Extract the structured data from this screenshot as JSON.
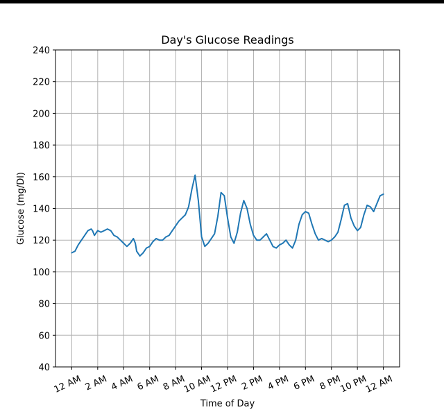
{
  "chart_data": {
    "type": "line",
    "title": "Day's Glucose Readings",
    "xlabel": "Time of Day",
    "ylabel": "Glucose (mg/Dl)",
    "ylim": [
      40,
      240
    ],
    "yticks": [
      40,
      60,
      80,
      100,
      120,
      140,
      160,
      180,
      200,
      220,
      240
    ],
    "xlim": [
      -1.25,
      25.25
    ],
    "xticks": [
      {
        "value": 0,
        "label": "12 AM"
      },
      {
        "value": 2,
        "label": "2 AM"
      },
      {
        "value": 4,
        "label": "4 AM"
      },
      {
        "value": 6,
        "label": "6 AM"
      },
      {
        "value": 8,
        "label": "8 AM"
      },
      {
        "value": 10,
        "label": "10 AM"
      },
      {
        "value": 12,
        "label": "12 PM"
      },
      {
        "value": 14,
        "label": "2 PM"
      },
      {
        "value": 16,
        "label": "4 PM"
      },
      {
        "value": 18,
        "label": "6 PM"
      },
      {
        "value": 20,
        "label": "8 PM"
      },
      {
        "value": 22,
        "label": "10 PM"
      },
      {
        "value": 24,
        "label": "12 AM"
      }
    ],
    "grid": true,
    "series": [
      {
        "color": "#1f77b4",
        "x": [
          0,
          0.25,
          0.5,
          0.75,
          1.0,
          1.25,
          1.5,
          1.6,
          1.75,
          2.0,
          2.25,
          2.5,
          2.75,
          3.0,
          3.25,
          3.5,
          3.75,
          4.0,
          4.25,
          4.5,
          4.75,
          4.9,
          5.0,
          5.25,
          5.5,
          5.75,
          6.0,
          6.25,
          6.5,
          6.75,
          7.0,
          7.25,
          7.5,
          7.75,
          8.0,
          8.25,
          8.5,
          8.75,
          9.0,
          9.25,
          9.5,
          9.75,
          10.0,
          10.25,
          10.5,
          10.75,
          11.0,
          11.25,
          11.5,
          11.75,
          12.0,
          12.25,
          12.5,
          12.75,
          13.0,
          13.25,
          13.5,
          13.75,
          14.0,
          14.25,
          14.5,
          14.75,
          15.0,
          15.25,
          15.5,
          15.75,
          16.0,
          16.25,
          16.5,
          16.75,
          17.0,
          17.25,
          17.5,
          17.75,
          18.0,
          18.25,
          18.5,
          18.75,
          19.0,
          19.25,
          19.5,
          19.75,
          20.0,
          20.25,
          20.5,
          20.75,
          21.0,
          21.25,
          21.5,
          21.75,
          22.0,
          22.25,
          22.5,
          22.75,
          23.0,
          23.25,
          23.5,
          23.75,
          24.0
        ],
        "y": [
          112,
          113,
          117,
          120,
          123,
          126,
          127,
          126,
          123,
          126,
          125,
          126,
          127,
          126,
          123,
          122,
          120,
          118,
          116,
          118,
          121,
          118,
          113,
          110,
          112,
          115,
          116,
          119,
          121,
          120,
          120,
          122,
          123,
          126,
          129,
          132,
          134,
          136,
          141,
          152,
          161,
          145,
          122,
          116,
          118,
          121,
          124,
          135,
          150,
          148,
          134,
          122,
          118,
          125,
          137,
          145,
          140,
          130,
          123,
          120,
          120,
          122,
          124,
          120,
          116,
          115,
          117,
          118,
          120,
          117,
          115,
          120,
          130,
          136,
          138,
          137,
          130,
          124,
          120,
          121,
          120,
          119,
          120,
          122,
          125,
          133,
          142,
          143,
          134,
          129,
          126,
          128,
          136,
          142,
          141,
          138,
          143,
          148,
          149
        ]
      }
    ]
  }
}
